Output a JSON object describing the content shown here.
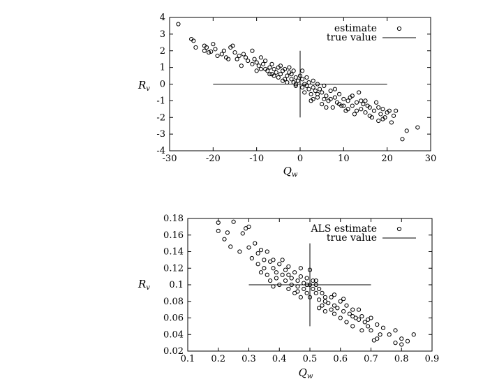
{
  "chart_data": [
    {
      "type": "scatter",
      "xlabel": "Q_w",
      "ylabel": "R_v",
      "xlim": [
        -30,
        30
      ],
      "ylim": [
        -4,
        4
      ],
      "xticks": [
        "-30",
        "-20",
        "-10",
        "0",
        "10",
        "20",
        "30"
      ],
      "yticks": [
        "4",
        "3",
        "2",
        "1",
        "0",
        "-1",
        "-2",
        "-3",
        "-4"
      ],
      "grid": false,
      "legend_position": "top-right",
      "legend": [
        "estimate",
        "true value"
      ],
      "series": [
        {
          "name": "estimate",
          "marker": "open-circle",
          "points": [
            [
              -28,
              3.6
            ],
            [
              -25,
              2.7
            ],
            [
              -24.5,
              2.6
            ],
            [
              -24,
              2.2
            ],
            [
              -22,
              2.3
            ],
            [
              -22,
              2.0
            ],
            [
              -21.5,
              2.2
            ],
            [
              -21,
              1.9
            ],
            [
              -20.5,
              1.95
            ],
            [
              -20,
              2.4
            ],
            [
              -19,
              1.7
            ],
            [
              -18,
              1.8
            ],
            [
              -17.5,
              2.0
            ],
            [
              -17,
              1.6
            ],
            [
              -16,
              2.2
            ],
            [
              -15.5,
              2.3
            ],
            [
              -15,
              1.9
            ],
            [
              -14.5,
              1.5
            ],
            [
              -14,
              1.7
            ],
            [
              -13,
              1.8
            ],
            [
              -12.5,
              1.6
            ],
            [
              -12,
              1.4
            ],
            [
              -11,
              2.0
            ],
            [
              -11,
              1.2
            ],
            [
              -10.5,
              1.5
            ],
            [
              -10,
              1.3
            ],
            [
              -9.5,
              1.1
            ],
            [
              -9,
              0.9
            ],
            [
              -8.5,
              1.2
            ],
            [
              -8,
              1.4
            ],
            [
              -7.5,
              0.8
            ],
            [
              -7,
              1.0
            ],
            [
              -6.5,
              1.2
            ],
            [
              -6,
              0.9
            ],
            [
              -6,
              0.5
            ],
            [
              -5.5,
              0.7
            ],
            [
              -5,
              1.0
            ],
            [
              -4.5,
              0.6
            ],
            [
              -4,
              0.8
            ],
            [
              -4,
              0.2
            ],
            [
              -3.5,
              0.9
            ],
            [
              -3,
              0.5
            ],
            [
              -3,
              0.1
            ],
            [
              -2.5,
              0.7
            ],
            [
              -2,
              0.3
            ],
            [
              -2,
              0.6
            ],
            [
              -1.5,
              0.1
            ],
            [
              -1,
              0.4
            ],
            [
              -1,
              -0.1
            ],
            [
              -0.5,
              0.2
            ],
            [
              0,
              0.5
            ],
            [
              0.5,
              -0.2
            ],
            [
              0.5,
              0.3
            ],
            [
              1,
              0.0
            ],
            [
              1,
              -0.5
            ],
            [
              1.5,
              0.4
            ],
            [
              2,
              -0.3
            ],
            [
              2,
              0.1
            ],
            [
              2.5,
              -0.6
            ],
            [
              3,
              0.2
            ],
            [
              3,
              -0.2
            ],
            [
              3.5,
              -0.4
            ],
            [
              4,
              0.0
            ],
            [
              4,
              -0.8
            ],
            [
              4.5,
              -0.3
            ],
            [
              5,
              -0.5
            ],
            [
              5,
              -1.2
            ],
            [
              5.5,
              -0.1
            ],
            [
              6,
              -0.7
            ],
            [
              6.5,
              -1.0
            ],
            [
              7,
              -0.4
            ],
            [
              7.5,
              -1.4
            ],
            [
              8,
              -0.8
            ],
            [
              8.5,
              -1.1
            ],
            [
              9,
              -0.6
            ],
            [
              9.5,
              -1.3
            ],
            [
              10,
              -0.9
            ],
            [
              10.5,
              -1.6
            ],
            [
              11,
              -1.0
            ],
            [
              11.5,
              -0.8
            ],
            [
              12,
              -1.3
            ],
            [
              12.5,
              -1.8
            ],
            [
              13,
              -1.1
            ],
            [
              13.5,
              -0.5
            ],
            [
              14,
              -1.5
            ],
            [
              14.5,
              -1.2
            ],
            [
              15,
              -1.7
            ],
            [
              15.5,
              -1.3
            ],
            [
              16,
              -1.4
            ],
            [
              16.5,
              -2.0
            ],
            [
              17,
              -1.6
            ],
            [
              17.5,
              -1.1
            ],
            [
              18,
              -2.2
            ],
            [
              18.5,
              -1.8
            ],
            [
              19,
              -1.5
            ],
            [
              19.5,
              -2.0
            ],
            [
              20,
              -1.7
            ],
            [
              20.5,
              -1.6
            ],
            [
              21,
              -2.3
            ],
            [
              22,
              -1.6
            ],
            [
              21.5,
              -1.9
            ],
            [
              23.5,
              -3.3
            ],
            [
              24.5,
              -2.8
            ],
            [
              27,
              -2.6
            ],
            [
              -8,
              0.9
            ],
            [
              -5,
              0.4
            ],
            [
              -2.5,
              1.0
            ],
            [
              0.5,
              0.8
            ],
            [
              3,
              -0.9
            ],
            [
              6,
              -1.4
            ],
            [
              9,
              -1.2
            ],
            [
              12,
              -0.7
            ],
            [
              15,
              -1.0
            ],
            [
              -13.5,
              1.1
            ],
            [
              -9,
              1.6
            ],
            [
              -6.5,
              0.6
            ],
            [
              -3.5,
              0.3
            ],
            [
              -1.5,
              0.8
            ],
            [
              1.5,
              -0.1
            ],
            [
              4,
              -0.6
            ],
            [
              7,
              -0.9
            ],
            [
              10,
              -1.3
            ],
            [
              13,
              -1.6
            ],
            [
              16,
              -1.9
            ],
            [
              19,
              -2.1
            ],
            [
              -19.5,
              2.1
            ],
            [
              -16.5,
              1.5
            ],
            [
              -10,
              0.8
            ],
            [
              -4.5,
              1.1
            ],
            [
              2.5,
              -1.0
            ],
            [
              8,
              -0.3
            ],
            [
              11,
              -1.5
            ],
            [
              14,
              -1.0
            ],
            [
              18,
              -1.4
            ],
            [
              -7,
              0.6
            ],
            [
              -1,
              0.0
            ],
            [
              5.5,
              -0.9
            ]
          ]
        },
        {
          "name": "true value",
          "type": "crosshair",
          "center": [
            0,
            0
          ],
          "horizontal_range": [
            -20,
            20
          ],
          "vertical_range": [
            -2,
            2
          ]
        }
      ]
    },
    {
      "type": "scatter",
      "xlabel": "Q_w",
      "ylabel": "R_v",
      "xlim": [
        0.1,
        0.9
      ],
      "ylim": [
        0.02,
        0.18
      ],
      "xticks": [
        "0.1",
        "0.2",
        "0.3",
        "0.4",
        "0.5",
        "0.6",
        "0.7",
        "0.8",
        "0.9"
      ],
      "yticks": [
        "0.18",
        "0.16",
        "0.14",
        "0.12",
        "0.1",
        "0.08",
        "0.06",
        "0.04",
        "0.02"
      ],
      "grid": false,
      "legend_position": "top-right",
      "legend": [
        "ALS estimate",
        "true value"
      ],
      "series": [
        {
          "name": "ALS estimate",
          "marker": "open-circle",
          "points": [
            [
              0.2,
              0.175
            ],
            [
              0.2,
              0.165
            ],
            [
              0.25,
              0.176
            ],
            [
              0.23,
              0.163
            ],
            [
              0.24,
              0.146
            ],
            [
              0.28,
              0.162
            ],
            [
              0.29,
              0.168
            ],
            [
              0.3,
              0.17
            ],
            [
              0.3,
              0.145
            ],
            [
              0.31,
              0.132
            ],
            [
              0.32,
              0.15
            ],
            [
              0.33,
              0.138
            ],
            [
              0.33,
              0.125
            ],
            [
              0.34,
              0.142
            ],
            [
              0.35,
              0.13
            ],
            [
              0.35,
              0.12
            ],
            [
              0.36,
              0.14
            ],
            [
              0.36,
              0.112
            ],
            [
              0.37,
              0.128
            ],
            [
              0.37,
              0.105
            ],
            [
              0.38,
              0.12
            ],
            [
              0.38,
              0.13
            ],
            [
              0.39,
              0.115
            ],
            [
              0.4,
              0.125
            ],
            [
              0.4,
              0.1
            ],
            [
              0.41,
              0.112
            ],
            [
              0.41,
              0.13
            ],
            [
              0.42,
              0.105
            ],
            [
              0.42,
              0.118
            ],
            [
              0.43,
              0.095
            ],
            [
              0.43,
              0.122
            ],
            [
              0.44,
              0.108
            ],
            [
              0.44,
              0.1
            ],
            [
              0.45,
              0.115
            ],
            [
              0.45,
              0.09
            ],
            [
              0.46,
              0.105
            ],
            [
              0.46,
              0.098
            ],
            [
              0.47,
              0.11
            ],
            [
              0.47,
              0.085
            ],
            [
              0.48,
              0.102
            ],
            [
              0.48,
              0.095
            ],
            [
              0.49,
              0.108
            ],
            [
              0.49,
              0.09
            ],
            [
              0.5,
              0.1
            ],
            [
              0.5,
              0.118
            ],
            [
              0.5,
              0.085
            ],
            [
              0.51,
              0.095
            ],
            [
              0.51,
              0.105
            ],
            [
              0.52,
              0.09
            ],
            [
              0.52,
              0.1
            ],
            [
              0.53,
              0.082
            ],
            [
              0.53,
              0.095
            ],
            [
              0.54,
              0.075
            ],
            [
              0.54,
              0.09
            ],
            [
              0.55,
              0.085
            ],
            [
              0.55,
              0.068
            ],
            [
              0.56,
              0.078
            ],
            [
              0.57,
              0.07
            ],
            [
              0.57,
              0.085
            ],
            [
              0.58,
              0.065
            ],
            [
              0.58,
              0.088
            ],
            [
              0.59,
              0.072
            ],
            [
              0.6,
              0.06
            ],
            [
              0.6,
              0.08
            ],
            [
              0.61,
              0.068
            ],
            [
              0.62,
              0.075
            ],
            [
              0.62,
              0.055
            ],
            [
              0.63,
              0.065
            ],
            [
              0.64,
              0.05
            ],
            [
              0.64,
              0.07
            ],
            [
              0.65,
              0.06
            ],
            [
              0.66,
              0.058
            ],
            [
              0.67,
              0.045
            ],
            [
              0.67,
              0.062
            ],
            [
              0.68,
              0.055
            ],
            [
              0.69,
              0.05
            ],
            [
              0.7,
              0.06
            ],
            [
              0.7,
              0.045
            ],
            [
              0.71,
              0.033
            ],
            [
              0.72,
              0.052
            ],
            [
              0.73,
              0.04
            ],
            [
              0.74,
              0.048
            ],
            [
              0.76,
              0.04
            ],
            [
              0.78,
              0.045
            ],
            [
              0.78,
              0.03
            ],
            [
              0.8,
              0.028
            ],
            [
              0.8,
              0.035
            ],
            [
              0.82,
              0.032
            ],
            [
              0.84,
              0.04
            ],
            [
              0.22,
              0.155
            ],
            [
              0.27,
              0.14
            ],
            [
              0.34,
              0.115
            ],
            [
              0.39,
              0.108
            ],
            [
              0.43,
              0.112
            ],
            [
              0.46,
              0.092
            ],
            [
              0.49,
              0.1
            ],
            [
              0.52,
              0.105
            ],
            [
              0.55,
              0.08
            ],
            [
              0.58,
              0.075
            ],
            [
              0.61,
              0.083
            ],
            [
              0.64,
              0.062
            ],
            [
              0.66,
              0.07
            ],
            [
              0.69,
              0.058
            ],
            [
              0.72,
              0.035
            ],
            [
              0.38,
              0.098
            ],
            [
              0.47,
              0.12
            ],
            [
              0.53,
              0.072
            ]
          ]
        },
        {
          "name": "true value",
          "type": "crosshair",
          "center": [
            0.5,
            0.1
          ],
          "horizontal_range": [
            0.3,
            0.7
          ],
          "vertical_range": [
            0.05,
            0.15
          ]
        }
      ]
    }
  ]
}
